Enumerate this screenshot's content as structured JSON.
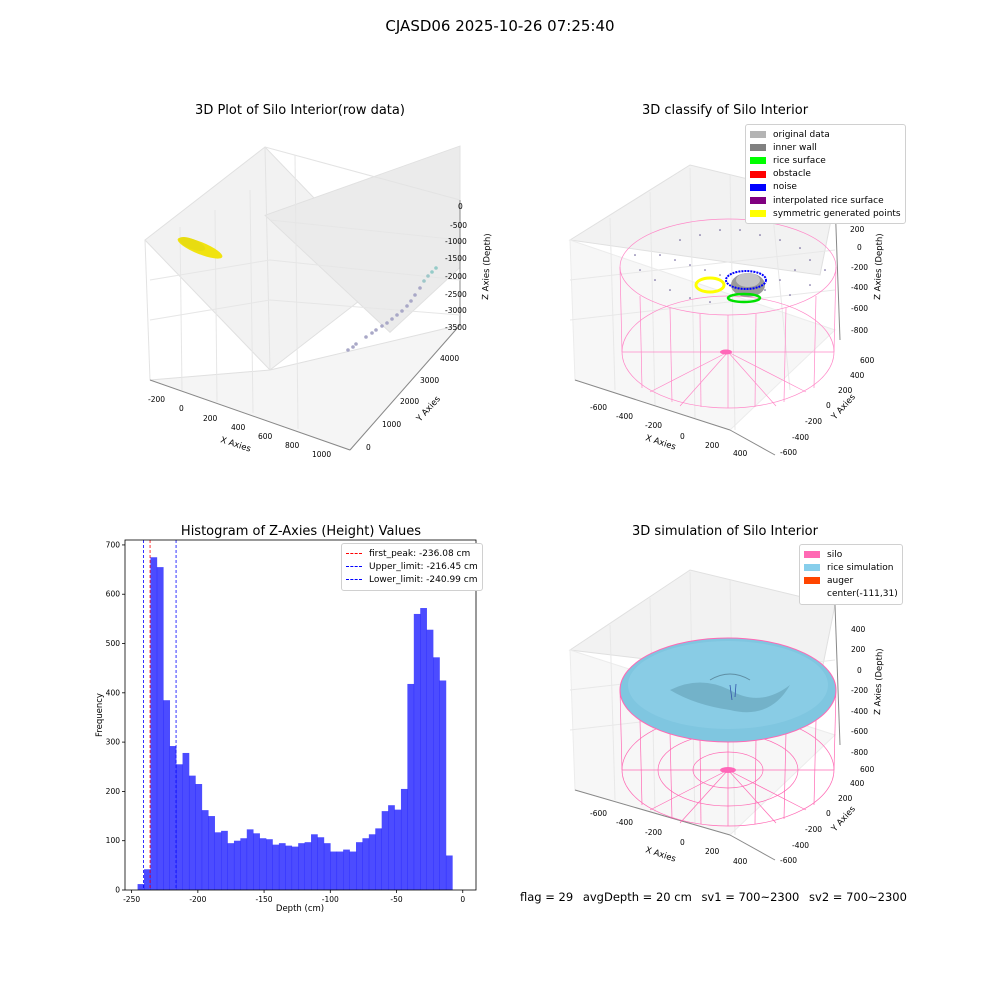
{
  "figure": {
    "suptitle": "CJASD06 2025-10-26 07:25:40"
  },
  "panel_raw": {
    "title": "3D Plot of Silo Interior(row data)",
    "xlabel": "X Axies",
    "ylabel": "Y Axies",
    "zlabel": "Z Axies (Depth)",
    "xticks": [
      "-200",
      "0",
      "200",
      "400",
      "600",
      "800",
      "1000"
    ],
    "yticks": [
      "0",
      "1000",
      "2000",
      "3000",
      "4000"
    ],
    "zticks": [
      "0",
      "-500",
      "-1000",
      "-1500",
      "-2000",
      "-2500",
      "-3000",
      "-3500"
    ]
  },
  "panel_classify": {
    "title": "3D classify of Silo Interior",
    "xlabel": "X Axies",
    "ylabel": "Y Axies",
    "zlabel": "Z Axies (Depth)",
    "xticks": [
      "-600",
      "-400",
      "-200",
      "0",
      "200",
      "400"
    ],
    "yticks": [
      "-600",
      "-400",
      "-200",
      "0",
      "200",
      "400",
      "600"
    ],
    "zticks": [
      "200",
      "0",
      "-200",
      "-400",
      "-600",
      "-800"
    ],
    "legend": [
      {
        "label": "original data",
        "color": "#b4b4b4"
      },
      {
        "label": "inner wall",
        "color": "#808080"
      },
      {
        "label": "rice surface",
        "color": "#00ff00"
      },
      {
        "label": "obstacle",
        "color": "#ff0000"
      },
      {
        "label": "noise",
        "color": "#0000ff"
      },
      {
        "label": "interpolated rice surface",
        "color": "#800080"
      },
      {
        "label": "symmetric generated points",
        "color": "#ffff00"
      }
    ]
  },
  "panel_sim": {
    "title": "3D simulation of Silo Interior",
    "xlabel": "X Axies",
    "ylabel": "Y Axies",
    "zlabel": "Z Axies (Depth)",
    "xticks": [
      "-600",
      "-400",
      "-200",
      "0",
      "200",
      "400"
    ],
    "yticks": [
      "-600",
      "-400",
      "-200",
      "0",
      "200",
      "400",
      "600"
    ],
    "zticks": [
      "400",
      "200",
      "0",
      "-200",
      "-400",
      "-600",
      "-800"
    ],
    "legend": [
      {
        "label": "silo",
        "color": "#ff69b4"
      },
      {
        "label": "rice simulation",
        "color": "#87ceeb"
      },
      {
        "label": "auger",
        "color": "#ff4500"
      },
      {
        "label": "center(-111,31)",
        "color": "#ffffff"
      }
    ]
  },
  "footer": {
    "flag": "flag = 29",
    "avg": "avgDepth = 20 cm",
    "sv1": "sv1 = 700~2300",
    "sv2": "sv2 = 700~2300"
  },
  "chart_data": [
    {
      "type": "bar",
      "title": "Histogram of Z-Axies (Height) Values",
      "xlabel": "Depth (cm)",
      "ylabel": "Frequency",
      "xlim": [
        -255,
        10
      ],
      "ylim": [
        0,
        710
      ],
      "xticks": [
        -250,
        -200,
        -150,
        -100,
        -50,
        0
      ],
      "yticks": [
        0,
        100,
        200,
        300,
        400,
        500,
        600,
        700
      ],
      "bar_color": "#0000ff",
      "bin_start": -245.5,
      "bin_width": 4.85,
      "values": [
        12,
        42,
        675,
        655,
        385,
        292,
        255,
        278,
        232,
        215,
        162,
        150,
        117,
        120,
        95,
        100,
        105,
        123,
        115,
        105,
        103,
        92,
        95,
        90,
        88,
        95,
        97,
        113,
        107,
        95,
        78,
        78,
        82,
        78,
        97,
        105,
        113,
        125,
        160,
        172,
        163,
        205,
        418,
        560,
        572,
        528,
        472,
        425,
        70
      ],
      "vlines": [
        {
          "label": "first_peak: -236.08 cm",
          "x": -236.08,
          "color": "#ff0000"
        },
        {
          "label": "Upper_limit: -216.45 cm",
          "x": -216.45,
          "color": "#0000ff"
        },
        {
          "label": "Lower_limit: -240.99 cm",
          "x": -240.99,
          "color": "#0000ff"
        }
      ],
      "legend_position": "upper right"
    }
  ]
}
